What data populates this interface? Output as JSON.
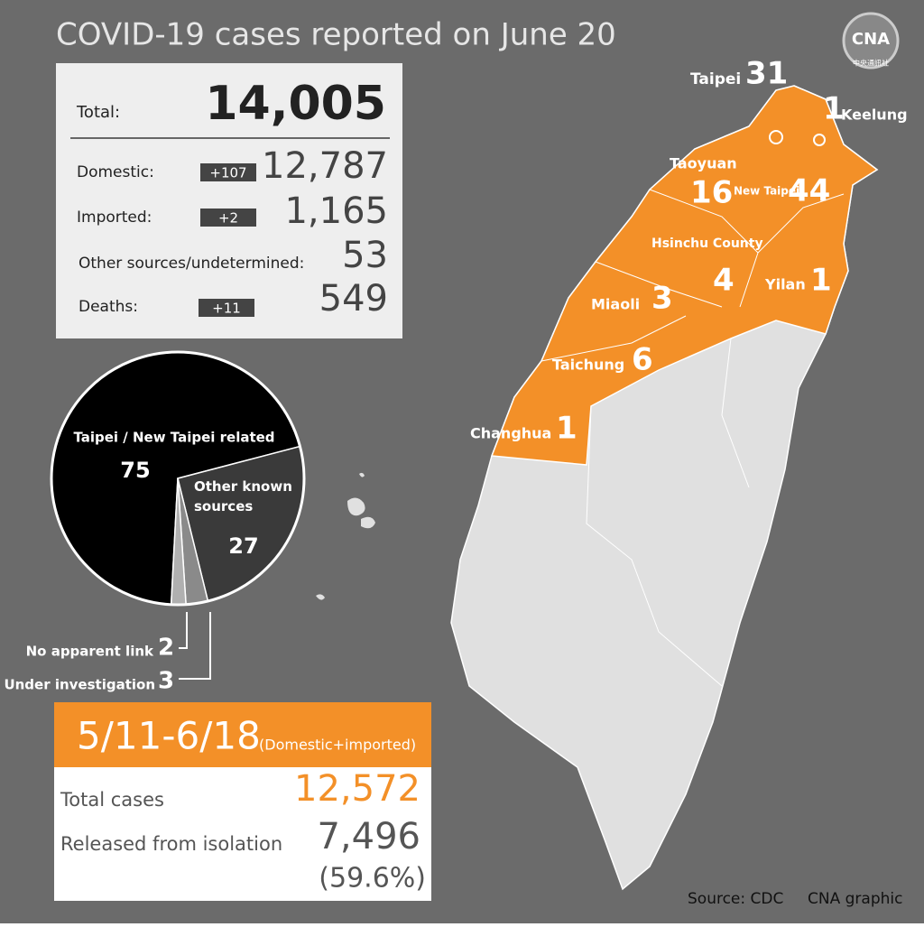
{
  "title": "COVID-19 cases reported on June 20",
  "logo": {
    "mark": "CNA",
    "subtitle": "中央通訊社"
  },
  "summary": {
    "total": {
      "label": "Total:",
      "value": "14,005"
    },
    "rows": [
      {
        "label": "Domestic:",
        "change": "+107",
        "value": "12,787"
      },
      {
        "label": "Imported:",
        "change": "+2",
        "value": "1,165"
      },
      {
        "label": "Other sources/undetermined:",
        "value": "53"
      },
      {
        "label": "Deaths:",
        "change": "+11",
        "value": "549"
      }
    ]
  },
  "chart_data": {
    "type": "pie",
    "categories": [
      "Taipei / New Taipei related",
      "Other known sources",
      "Under investigation",
      "No apparent link"
    ],
    "values": [
      75,
      27,
      3,
      2
    ],
    "colors": [
      "#000000",
      "#3a3a3a",
      "#8a8a8a",
      "#b0b0b0"
    ]
  },
  "period": {
    "range": "5/11-6/18",
    "note": "(Domestic+imported)",
    "rows": [
      {
        "label": "Total cases",
        "value": "12,572"
      },
      {
        "label": "Released from isolation",
        "value": "7,496",
        "share": "(59.6%)"
      }
    ]
  },
  "map": {
    "regions": [
      {
        "name": "Taipei",
        "cases": 31
      },
      {
        "name": "Keelung",
        "cases": 1
      },
      {
        "name": "Taoyuan",
        "cases": 16
      },
      {
        "name": "New Taipei",
        "cases": 44
      },
      {
        "name": "Hsinchu County",
        "cases": 4
      },
      {
        "name": "Yilan",
        "cases": 1
      },
      {
        "name": "Miaoli",
        "cases": 3
      },
      {
        "name": "Taichung",
        "cases": 6
      },
      {
        "name": "Changhua",
        "cases": 1
      }
    ]
  },
  "source": "Source: CDC",
  "credit": "CNA graphic"
}
